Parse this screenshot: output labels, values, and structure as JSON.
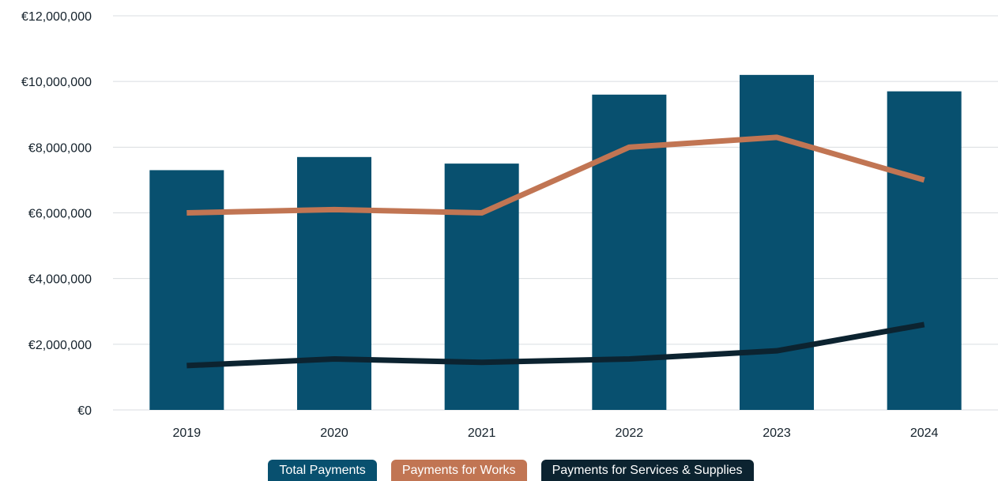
{
  "colors": {
    "bar": "#08506f",
    "works": "#c17553",
    "services": "#0c2330",
    "grid": "#d9dde0",
    "text": "#14212b"
  },
  "chart_data": {
    "type": "bar",
    "categories": [
      "2019",
      "2020",
      "2021",
      "2022",
      "2023",
      "2024"
    ],
    "ylim": [
      0,
      12000000
    ],
    "yticks": [
      0,
      2000000,
      4000000,
      6000000,
      8000000,
      10000000,
      12000000
    ],
    "ytick_labels": [
      "€0",
      "€2,000,000",
      "€4,000,000",
      "€6,000,000",
      "€8,000,000",
      "€10,000,000",
      "€12,000,000"
    ],
    "grid": true,
    "legend_position": "bottom",
    "series": [
      {
        "name": "Total Payments",
        "type": "bar",
        "color": "#08506f",
        "values": [
          7300000,
          7700000,
          7500000,
          9600000,
          10200000,
          9700000
        ]
      },
      {
        "name": "Payments for Works",
        "type": "line",
        "color": "#c17553",
        "values": [
          6000000,
          6100000,
          6000000,
          8000000,
          8300000,
          7000000
        ]
      },
      {
        "name": "Payments for Services & Supplies",
        "type": "line",
        "color": "#0c2330",
        "values": [
          1350000,
          1550000,
          1450000,
          1550000,
          1800000,
          2600000
        ]
      }
    ]
  }
}
